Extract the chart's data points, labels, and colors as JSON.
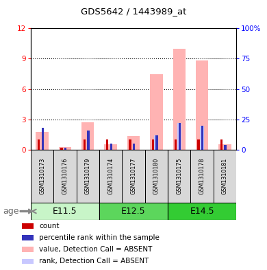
{
  "title": "GDS5642 / 1443989_at",
  "samples": [
    "GSM1310173",
    "GSM1310176",
    "GSM1310179",
    "GSM1310174",
    "GSM1310177",
    "GSM1310180",
    "GSM1310175",
    "GSM1310178",
    "GSM1310181"
  ],
  "age_groups": [
    {
      "label": "E11.5",
      "indices": [
        0,
        1,
        2
      ],
      "color": "#c8f5c8"
    },
    {
      "label": "E12.5",
      "indices": [
        3,
        4,
        5
      ],
      "color": "#5cd65c"
    },
    {
      "label": "E14.5",
      "indices": [
        6,
        7,
        8
      ],
      "color": "#33cc33"
    }
  ],
  "count_values": [
    1.0,
    0.2,
    1.0,
    1.0,
    1.0,
    1.0,
    1.0,
    1.0,
    1.0
  ],
  "percentile_rank_values": [
    18.0,
    2.0,
    16.0,
    5.0,
    5.0,
    12.0,
    22.0,
    20.0,
    4.0
  ],
  "absent_value_values": [
    1.8,
    0.25,
    2.7,
    0.55,
    1.35,
    7.5,
    10.0,
    8.8,
    0.55
  ],
  "absent_rank_values": [
    0,
    0,
    0,
    0,
    0,
    12.0,
    22.0,
    20.0,
    0
  ],
  "ylim_left": [
    0,
    12
  ],
  "ylim_right": [
    0,
    100
  ],
  "yticks_left": [
    0,
    3,
    6,
    9,
    12
  ],
  "yticks_right": [
    0,
    25,
    50,
    75,
    100
  ],
  "color_count": "#cc0000",
  "color_rank": "#3333bb",
  "color_absent_value": "#ffb3b3",
  "color_absent_rank": "#c8c8ff",
  "legend_labels": [
    "count",
    "percentile rank within the sample",
    "value, Detection Call = ABSENT",
    "rank, Detection Call = ABSENT"
  ],
  "legend_colors": [
    "#cc0000",
    "#3333bb",
    "#ffb3b3",
    "#c8c8ff"
  ],
  "age_label": "age"
}
